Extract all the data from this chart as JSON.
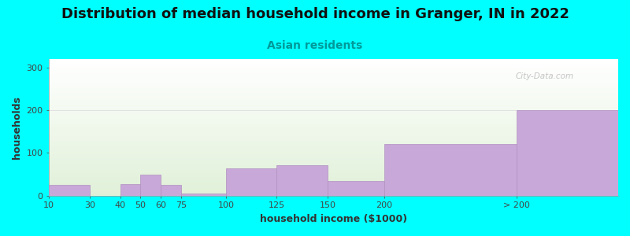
{
  "title": "Distribution of median household income in Granger, IN in 2022",
  "subtitle": "Asian residents",
  "xlabel": "household income ($1000)",
  "ylabel": "households",
  "background_color": "#00FFFF",
  "bar_color": "#C8A8D8",
  "bar_edge_color": "#B090C0",
  "categories": [
    "10",
    "30",
    "40",
    "50",
    "60",
    "75",
    "100",
    "125",
    "150",
    "200",
    "> 200"
  ],
  "values": [
    25,
    0,
    27,
    50,
    25,
    5,
    65,
    72,
    35,
    122,
    200
  ],
  "bin_edges": [
    0,
    20,
    35,
    45,
    55,
    65,
    87,
    112,
    137,
    165,
    230,
    280
  ],
  "ylim": [
    0,
    320
  ],
  "yticks": [
    0,
    100,
    200,
    300
  ],
  "title_fontsize": 13,
  "subtitle_fontsize": 10,
  "axis_label_fontsize": 9,
  "tick_fontsize": 8,
  "watermark_text": "City-Data.com"
}
